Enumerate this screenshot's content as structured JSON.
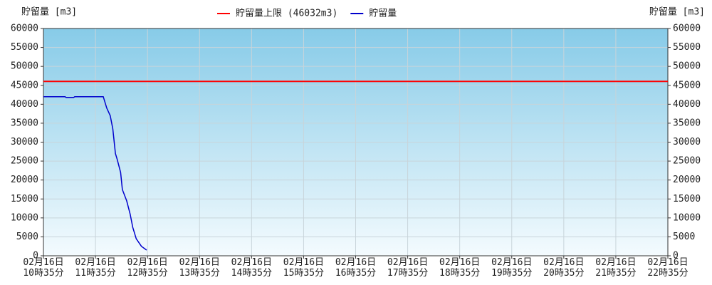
{
  "chart_data": {
    "type": "line",
    "y_label": "貯留量 [m3]",
    "y2_label": "貯留量 [m3]",
    "x": [
      "02-16T10:35",
      "02-16T11:00",
      "02-16T11:01",
      "02-16T11:10",
      "02-16T11:11",
      "02-16T11:44",
      "02-16T11:46",
      "02-16T11:48",
      "02-16T11:52",
      "02-16T11:55",
      "02-16T11:58",
      "02-16T12:00",
      "02-16T12:04",
      "02-16T12:06",
      "02-16T12:11",
      "02-16T12:15",
      "02-16T12:18",
      "02-16T12:22",
      "02-16T12:28",
      "02-16T12:34"
    ],
    "series": [
      {
        "name": "貯留量",
        "color": "#0000cc",
        "values": [
          42000,
          42000,
          41800,
          41800,
          42000,
          42000,
          40500,
          39000,
          37000,
          33500,
          27000,
          25500,
          22000,
          17500,
          14500,
          11000,
          7500,
          4500,
          2500,
          1500
        ]
      }
    ],
    "hlines": [
      {
        "name": "貯留量上限 (46032m3)",
        "value": 46032,
        "color": "#ff0000"
      }
    ],
    "xlim": [
      "02-16T10:35",
      "02-16T22:35"
    ],
    "xticks": [
      {
        "value": "02-16T10:35",
        "label": "02月16日\n10時35分"
      },
      {
        "value": "02-16T11:35",
        "label": "02月16日\n11時35分"
      },
      {
        "value": "02-16T12:35",
        "label": "02月16日\n12時35分"
      },
      {
        "value": "02-16T13:35",
        "label": "02月16日\n13時35分"
      },
      {
        "value": "02-16T14:35",
        "label": "02月16日\n14時35分"
      },
      {
        "value": "02-16T15:35",
        "label": "02月16日\n15時35分"
      },
      {
        "value": "02-16T16:35",
        "label": "02月16日\n16時35分"
      },
      {
        "value": "02-16T17:35",
        "label": "02月16日\n17時35分"
      },
      {
        "value": "02-16T18:35",
        "label": "02月16日\n18時35分"
      },
      {
        "value": "02-16T19:35",
        "label": "02月16日\n19時35分"
      },
      {
        "value": "02-16T20:35",
        "label": "02月16日\n20時35分"
      },
      {
        "value": "02-16T21:35",
        "label": "02月16日\n21時35分"
      },
      {
        "value": "02-16T22:35",
        "label": "02月16日\n22時35分"
      }
    ],
    "ylim": [
      0,
      60000
    ],
    "yticks": [
      0,
      5000,
      10000,
      15000,
      20000,
      25000,
      30000,
      35000,
      40000,
      45000,
      50000,
      55000,
      60000
    ],
    "y2lim": [
      0,
      60000
    ],
    "y2ticks": [
      0,
      5000,
      10000,
      15000,
      20000,
      25000,
      30000,
      35000,
      40000,
      45000,
      50000,
      55000,
      60000
    ],
    "grid": true,
    "legend": "top"
  }
}
